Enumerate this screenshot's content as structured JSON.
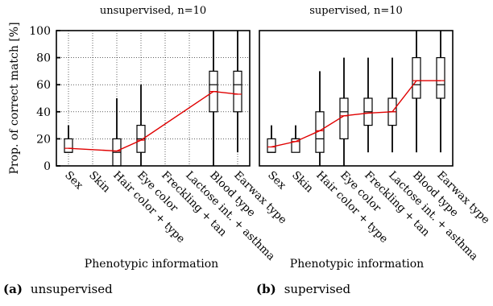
{
  "chart_data": [
    {
      "type": "box",
      "title": "unsupervised, n=10",
      "xlabel": "Phenotypic information",
      "ylabel": "Prop. of correct match [%]",
      "ylim": [
        0,
        100
      ],
      "yticks": [
        "0",
        "20",
        "40",
        "60",
        "80",
        "100"
      ],
      "grid": true,
      "categories": [
        "Sex",
        "Skin",
        "Hair color + type",
        "Eye color",
        "Freckling + tan",
        "Lactose int. + asthma",
        "Blood type",
        "Earwax type"
      ],
      "boxes": [
        {
          "whisker_low": 10,
          "q1": 10,
          "median": 10,
          "q3": 20,
          "whisker_high": 30
        },
        null,
        {
          "whisker_low": 0,
          "q1": 0,
          "median": 10,
          "q3": 20,
          "whisker_high": 50
        },
        {
          "whisker_low": 0,
          "q1": 10,
          "median": 20,
          "q3": 30,
          "whisker_high": 60
        },
        null,
        null,
        {
          "whisker_low": 0,
          "q1": 40,
          "median": 60,
          "q3": 70,
          "whisker_high": 100
        },
        {
          "whisker_low": 10,
          "q1": 40,
          "median": 60,
          "q3": 70,
          "whisker_high": 100
        }
      ],
      "mean": [
        13,
        null,
        11,
        19,
        null,
        null,
        55,
        53
      ],
      "mean_color": "#e00000",
      "caption_letter": "(a)",
      "caption_text": "unsupervised"
    },
    {
      "type": "box",
      "title": "supervised, n=10",
      "xlabel": "Phenotypic information",
      "ylim": [
        0,
        100
      ],
      "grid": false,
      "categories": [
        "Sex",
        "Skin",
        "Hair color + type",
        "Eye color",
        "Freckling + tan",
        "Lactose int. + asthma",
        "Blood type",
        "Earwax type"
      ],
      "boxes": [
        {
          "whisker_low": 10,
          "q1": 10,
          "median": 10,
          "q3": 20,
          "whisker_high": 30
        },
        {
          "whisker_low": 10,
          "q1": 10,
          "median": 20,
          "q3": 20,
          "whisker_high": 30
        },
        {
          "whisker_low": 0,
          "q1": 10,
          "median": 20,
          "q3": 40,
          "whisker_high": 70
        },
        {
          "whisker_low": 0,
          "q1": 20,
          "median": 40,
          "q3": 50,
          "whisker_high": 80
        },
        {
          "whisker_low": 10,
          "q1": 30,
          "median": 40,
          "q3": 50,
          "whisker_high": 80
        },
        {
          "whisker_low": 10,
          "q1": 30,
          "median": 40,
          "q3": 50,
          "whisker_high": 80
        },
        {
          "whisker_low": 10,
          "q1": 50,
          "median": 60,
          "q3": 80,
          "whisker_high": 100
        },
        {
          "whisker_low": 10,
          "q1": 50,
          "median": 60,
          "q3": 80,
          "whisker_high": 100
        }
      ],
      "mean": [
        14,
        18,
        26,
        37,
        39,
        40,
        63,
        63
      ],
      "mean_color": "#e00000",
      "caption_letter": "(b)",
      "caption_text": "supervised"
    }
  ]
}
